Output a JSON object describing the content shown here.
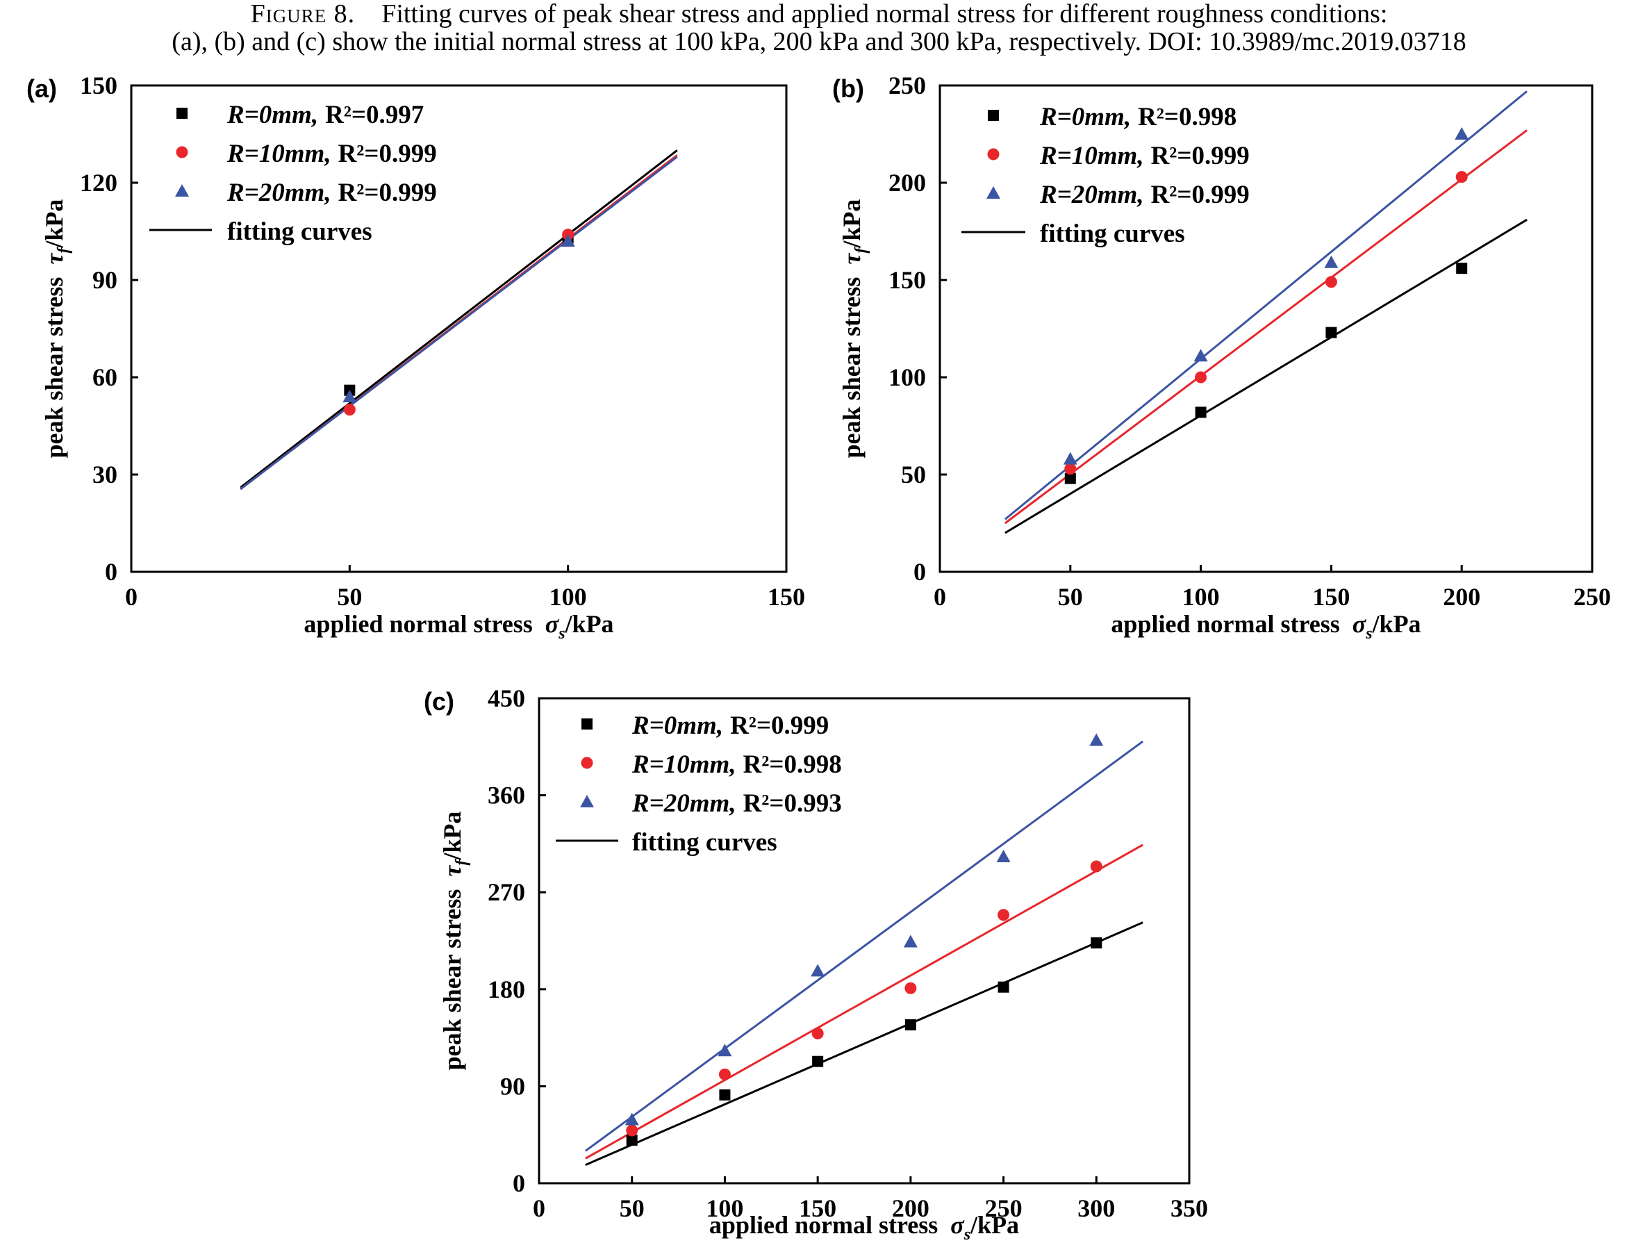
{
  "caption": {
    "figure_label": "Figure 8.",
    "line1": "Fitting curves of peak shear stress and applied normal stress for different roughness conditions:",
    "line2": "(a), (b) and (c) show the initial normal stress at 100 kPa, 200 kPa and 300 kPa, respectively.  DOI: 10.3989/mc.2019.03718"
  },
  "chart_data": [
    {
      "panel_label": "(a)",
      "type": "scatter",
      "xlabel": {
        "main": "applied normal stress",
        "symbol": "σ",
        "sub": "s",
        "unit": "/kPa"
      },
      "ylabel": {
        "main": "peak shear stress",
        "symbol": "τ",
        "sub": "f",
        "unit": "/kPa"
      },
      "xlim": [
        0,
        150
      ],
      "ylim": [
        0,
        150
      ],
      "xticks": [
        0,
        50,
        100,
        150
      ],
      "yticks": [
        0,
        30,
        60,
        90,
        120,
        150
      ],
      "series": [
        {
          "name": "R=0mm,",
          "r2": "R²=0.997",
          "marker": "square",
          "color": "#000000",
          "x": [
            50,
            100
          ],
          "y": [
            56,
            103
          ],
          "fit": {
            "x": [
              25,
              125
            ],
            "y": [
              26,
              130
            ]
          }
        },
        {
          "name": "R=10mm,",
          "r2": "R²=0.999",
          "marker": "circle",
          "color": "#e8262b",
          "x": [
            50,
            100
          ],
          "y": [
            50,
            104
          ],
          "fit": {
            "x": [
              25,
              125
            ],
            "y": [
              25.5,
              128.5
            ]
          }
        },
        {
          "name": "R=20mm,",
          "r2": "R²=0.999",
          "marker": "triangle",
          "color": "#3b55a3",
          "x": [
            50,
            100
          ],
          "y": [
            54,
            102
          ],
          "fit": {
            "x": [
              25,
              125
            ],
            "y": [
              25.5,
              128
            ]
          }
        }
      ],
      "fit_legend": "fitting curves"
    },
    {
      "panel_label": "(b)",
      "type": "scatter",
      "xlabel": {
        "main": "applied normal stress",
        "symbol": "σ",
        "sub": "s",
        "unit": "/kPa"
      },
      "ylabel": {
        "main": "peak shear stress",
        "symbol": "τ",
        "sub": "f",
        "unit": "/kPa"
      },
      "xlim": [
        0,
        250
      ],
      "ylim": [
        0,
        250
      ],
      "xticks": [
        0,
        50,
        100,
        150,
        200,
        250
      ],
      "yticks": [
        0,
        50,
        100,
        150,
        200,
        250
      ],
      "series": [
        {
          "name": "R=0mm,",
          "r2": "R²=0.998",
          "marker": "square",
          "color": "#000000",
          "x": [
            50,
            100,
            150,
            200
          ],
          "y": [
            48,
            82,
            123,
            156
          ],
          "fit": {
            "x": [
              25,
              225
            ],
            "y": [
              20,
              181
            ]
          }
        },
        {
          "name": "R=10mm,",
          "r2": "R²=0.999",
          "marker": "circle",
          "color": "#e8262b",
          "x": [
            50,
            100,
            150,
            200
          ],
          "y": [
            53,
            100,
            149,
            203
          ],
          "fit": {
            "x": [
              25,
              225
            ],
            "y": [
              25,
              227
            ]
          }
        },
        {
          "name": "R=20mm,",
          "r2": "R²=0.999",
          "marker": "triangle",
          "color": "#3b55a3",
          "x": [
            50,
            100,
            150,
            200
          ],
          "y": [
            58,
            111,
            159,
            225
          ],
          "fit": {
            "x": [
              25,
              225
            ],
            "y": [
              27,
              247
            ]
          }
        }
      ],
      "fit_legend": "fitting curves"
    },
    {
      "panel_label": "(c)",
      "type": "scatter",
      "xlabel": {
        "main": "applied normal stress",
        "symbol": "σ",
        "sub": "s",
        "unit": "/kPa"
      },
      "ylabel": {
        "main": "peak shear stress",
        "symbol": "τ",
        "sub": "f",
        "unit": "/kPa"
      },
      "xlim": [
        0,
        350
      ],
      "ylim": [
        0,
        450
      ],
      "xticks": [
        0,
        50,
        100,
        150,
        200,
        250,
        300,
        350
      ],
      "yticks": [
        0,
        90,
        180,
        270,
        360,
        450
      ],
      "series": [
        {
          "name": "R=0mm,",
          "r2": "R²=0.999",
          "marker": "square",
          "color": "#000000",
          "x": [
            50,
            100,
            150,
            200,
            250,
            300
          ],
          "y": [
            40,
            82,
            113,
            147,
            182,
            223
          ],
          "fit": {
            "x": [
              25,
              325
            ],
            "y": [
              17,
              242
            ]
          }
        },
        {
          "name": "R=10mm,",
          "r2": "R²=0.998",
          "marker": "circle",
          "color": "#e8262b",
          "x": [
            50,
            100,
            150,
            200,
            250,
            300
          ],
          "y": [
            49,
            101,
            139,
            181,
            249,
            294
          ],
          "fit": {
            "x": [
              25,
              325
            ],
            "y": [
              23,
              314
            ]
          }
        },
        {
          "name": "R=20mm,",
          "r2": "R²=0.993",
          "marker": "triangle",
          "color": "#3b55a3",
          "x": [
            50,
            100,
            150,
            200,
            250,
            300
          ],
          "y": [
            59,
            123,
            197,
            224,
            303,
            411
          ],
          "fit": {
            "x": [
              25,
              325
            ],
            "y": [
              30,
              410
            ]
          }
        }
      ],
      "fit_legend": "fitting curves"
    }
  ]
}
